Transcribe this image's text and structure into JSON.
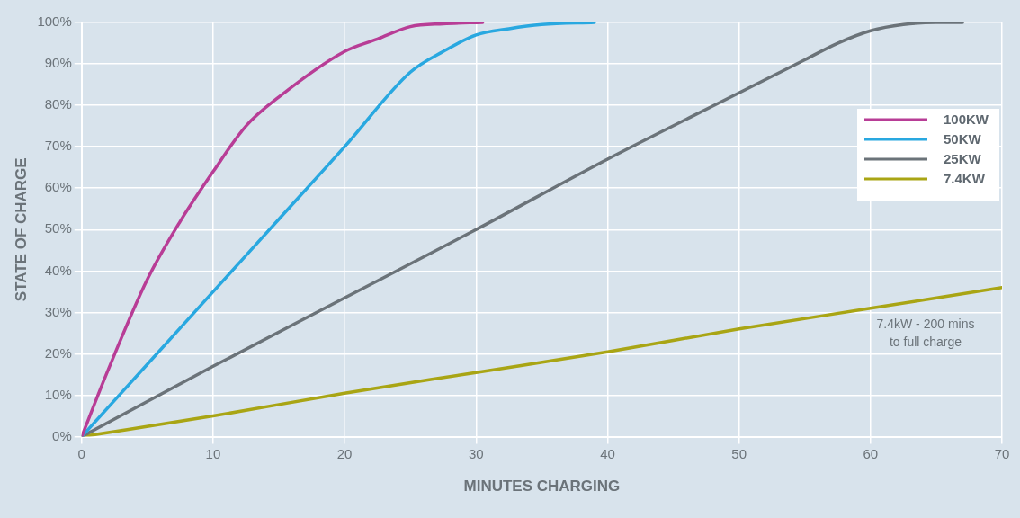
{
  "chart_data": {
    "type": "line",
    "xlabel": "MINUTES CHARGING",
    "ylabel": "STATE OF CHARGE",
    "xlim": [
      0,
      70
    ],
    "xticks": [
      0,
      10,
      20,
      30,
      40,
      50,
      60,
      70
    ],
    "ylim": [
      0,
      100
    ],
    "yticks": [
      {
        "value": 0,
        "label": "0%"
      },
      {
        "value": 10,
        "label": "10%"
      },
      {
        "value": 20,
        "label": "20%"
      },
      {
        "value": 30,
        "label": "30%"
      },
      {
        "value": 40,
        "label": "40%"
      },
      {
        "value": 50,
        "label": "50%"
      },
      {
        "value": 60,
        "label": "60%"
      },
      {
        "value": 70,
        "label": "70%"
      },
      {
        "value": 80,
        "label": "80%"
      },
      {
        "value": 90,
        "label": "90%"
      },
      {
        "value": 100,
        "label": "100%"
      }
    ],
    "grid": true,
    "legend": "right",
    "marker": "none",
    "line_style": "solid",
    "annotations": [
      "7.4kW - 200 mins\nto full charge"
    ],
    "series": [
      {
        "name": "100KW",
        "color": "#b83d96",
        "x": [
          0,
          2,
          5,
          7.5,
          10,
          12.5,
          15,
          20,
          22.5,
          25,
          27.5,
          30.5
        ],
        "values": [
          0,
          16,
          38,
          52,
          64,
          75,
          82,
          93,
          96,
          99,
          99.7,
          100
        ]
      },
      {
        "name": "50KW",
        "color": "#29a8e0",
        "x": [
          0,
          5,
          10,
          15,
          20,
          25,
          27.5,
          30,
          32.5,
          35,
          39
        ],
        "values": [
          0,
          17.5,
          35,
          52.5,
          70,
          88,
          93,
          97,
          98.5,
          99.5,
          100
        ]
      },
      {
        "name": "25KW",
        "color": "#6b7379",
        "x": [
          0,
          10,
          20,
          30,
          40,
          50,
          55,
          57.5,
          60,
          62.5,
          65,
          67
        ],
        "values": [
          0,
          17,
          33.5,
          50,
          67,
          83,
          91,
          95,
          98,
          99.5,
          100,
          100
        ]
      },
      {
        "name": "7.4KW",
        "color": "#a9a514",
        "x": [
          0,
          10,
          20,
          30,
          40,
          50,
          60,
          70
        ],
        "values": [
          0,
          5,
          10.5,
          15.5,
          20.5,
          26,
          31,
          36
        ]
      }
    ]
  }
}
